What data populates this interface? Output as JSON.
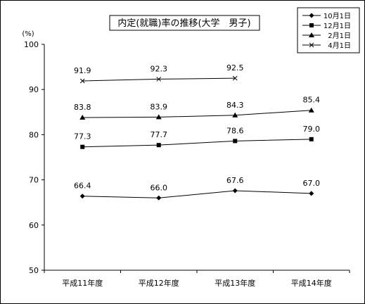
{
  "chart_data": {
    "type": "line",
    "title": "内定(就職)率の推移(大学　男子)",
    "ylabel": "(%)",
    "ylim": [
      50,
      100
    ],
    "yticks": [
      "50",
      "60",
      "70",
      "80",
      "90",
      "100"
    ],
    "grid": false,
    "legend_position": "top-right",
    "categories": [
      "平成11年度",
      "平成12年度",
      "平成13年度",
      "平成14年度"
    ],
    "series": [
      {
        "name": "10月1日",
        "marker": "diamond",
        "values": [
          66.4,
          66.0,
          67.6,
          67.0
        ],
        "labels": [
          "66.4",
          "66.0",
          "67.6",
          "67.0"
        ]
      },
      {
        "name": "12月1日",
        "marker": "square",
        "values": [
          77.3,
          77.7,
          78.6,
          79.0
        ],
        "labels": [
          "77.3",
          "77.7",
          "78.6",
          "79.0"
        ]
      },
      {
        "name": "2月1日",
        "marker": "triangle",
        "values": [
          83.8,
          83.9,
          84.3,
          85.4
        ],
        "labels": [
          "83.8",
          "83.9",
          "84.3",
          "85.4"
        ]
      },
      {
        "name": "4月1日",
        "marker": "x",
        "values": [
          91.9,
          92.3,
          92.5,
          null
        ],
        "labels": [
          "91.9",
          "92.3",
          "92.5",
          null
        ]
      }
    ],
    "colors": {
      "line": "#000000",
      "background": "#ffffff"
    }
  }
}
